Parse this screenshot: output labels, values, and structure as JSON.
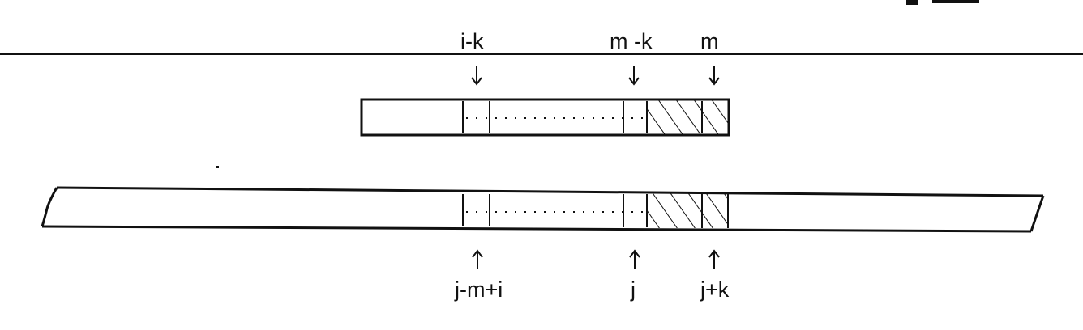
{
  "pattern_labels": {
    "i_minus_k": "i-k",
    "m_minus_k": "m -k",
    "m": "m"
  },
  "text_labels": {
    "j_minus_m_plus_i": "j-m+i",
    "j": "j",
    "j_plus_k": "j+k"
  },
  "header_fragment": "p    x..."
}
